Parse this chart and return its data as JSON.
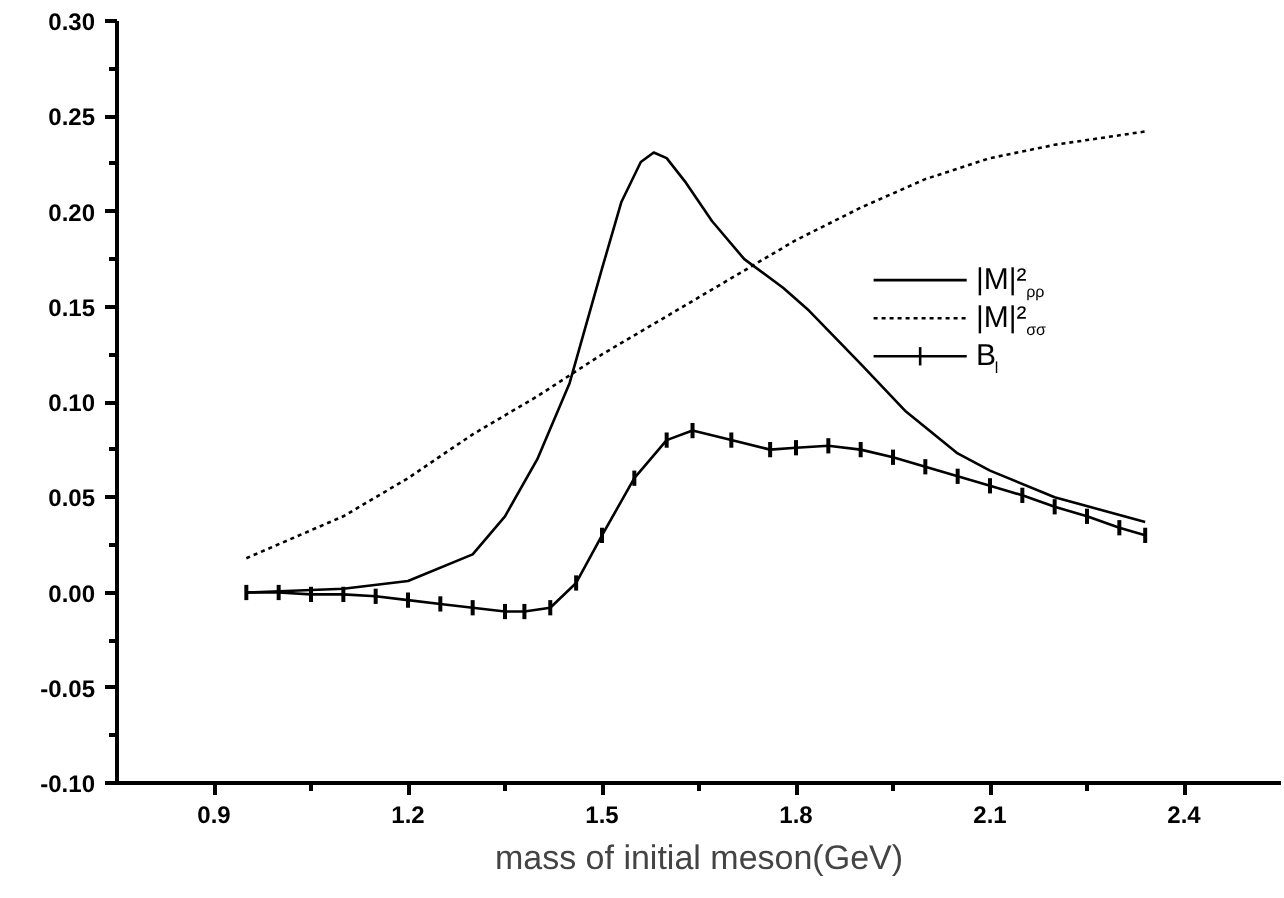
{
  "chart_data": {
    "type": "line",
    "xlabel": "mass of initial meson(GeV)",
    "xlim": [
      0.75,
      2.55
    ],
    "xticks": [
      0.9,
      1.2,
      1.5,
      1.8,
      2.1,
      2.4
    ],
    "ylim": [
      -0.1,
      0.3
    ],
    "yticks": [
      {
        "value": -0.1,
        "label": "-0.10"
      },
      {
        "value": -0.05,
        "label": "-0.05"
      },
      {
        "value": 0,
        "label": "0.00"
      },
      {
        "value": 0.05,
        "label": "0.05"
      },
      {
        "value": 0.1,
        "label": "0.10"
      },
      {
        "value": 0.15,
        "label": "0.15"
      },
      {
        "value": 0.2,
        "label": "0.20"
      },
      {
        "value": 0.25,
        "label": "0.25"
      },
      {
        "value": 0.3,
        "label": "0.30"
      }
    ],
    "grid": false,
    "legend": "top right",
    "marker": "none",
    "series": [
      {
        "name": "|M|²$_{ρρ}$",
        "color": "#000000",
        "line_style": "solid",
        "x": [
          0.95,
          1.1,
          1.2,
          1.3,
          1.35,
          1.4,
          1.45,
          1.5,
          1.53,
          1.56,
          1.58,
          1.6,
          1.63,
          1.67,
          1.72,
          1.78,
          1.82,
          1.9,
          1.97,
          2.05,
          2.1,
          2.2,
          2.34
        ],
        "values": [
          0.0,
          0.002,
          0.006,
          0.02,
          0.04,
          0.07,
          0.11,
          0.17,
          0.205,
          0.226,
          0.231,
          0.228,
          0.215,
          0.195,
          0.175,
          0.16,
          0.148,
          0.12,
          0.095,
          0.073,
          0.064,
          0.05,
          0.037
        ]
      },
      {
        "name": "|M|²$_{σσ}$",
        "color": "#000000",
        "line_style": "dotted",
        "x": [
          0.95,
          1.1,
          1.2,
          1.3,
          1.4,
          1.5,
          1.6,
          1.7,
          1.8,
          1.9,
          2.0,
          2.1,
          2.2,
          2.34
        ],
        "values": [
          0.018,
          0.04,
          0.06,
          0.083,
          0.103,
          0.125,
          0.145,
          0.165,
          0.185,
          0.202,
          0.217,
          0.228,
          0.235,
          0.242
        ]
      },
      {
        "name": "B$_{l}$",
        "color": "#000000",
        "line_style": "solid",
        "x": [
          0.95,
          1.0,
          1.05,
          1.1,
          1.15,
          1.2,
          1.25,
          1.3,
          1.35,
          1.38,
          1.42,
          1.46,
          1.5,
          1.55,
          1.6,
          1.64,
          1.7,
          1.76,
          1.8,
          1.85,
          1.9,
          1.95,
          2.0,
          2.05,
          2.1,
          2.15,
          2.2,
          2.25,
          2.3,
          2.34
        ],
        "values": [
          0.0,
          0.0,
          -0.001,
          -0.001,
          -0.002,
          -0.004,
          -0.006,
          -0.008,
          -0.01,
          -0.01,
          -0.008,
          0.005,
          0.03,
          0.06,
          0.08,
          0.085,
          0.08,
          0.075,
          0.076,
          0.077,
          0.075,
          0.071,
          0.066,
          0.061,
          0.056,
          0.051,
          0.045,
          0.04,
          0.034,
          0.03
        ],
        "errors": [
          0.004,
          0.004,
          0.004,
          0.004,
          0.004,
          0.004,
          0.004,
          0.004,
          0.004,
          0.004,
          0.004,
          0.004,
          0.004,
          0.004,
          0.004,
          0.004,
          0.004,
          0.004,
          0.004,
          0.004,
          0.004,
          0.004,
          0.004,
          0.004,
          0.004,
          0.004,
          0.004,
          0.004,
          0.004,
          0.004
        ]
      }
    ]
  }
}
